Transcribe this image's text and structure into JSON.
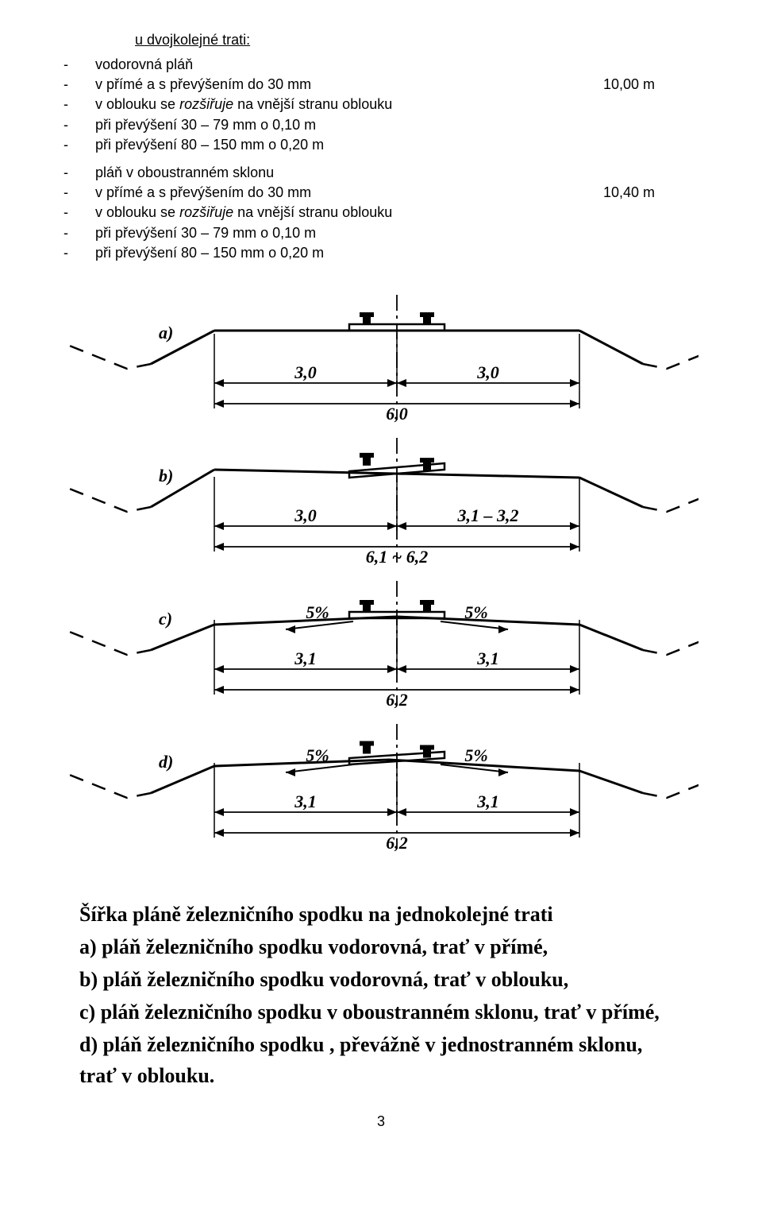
{
  "title": "u dvojkolejné trati:",
  "block1": {
    "b0": {
      "text": "vodorovná pláň",
      "right": ""
    },
    "b1": {
      "text": "v přímé a s převýšením do 30 mm",
      "right": "10,00 m"
    },
    "b2": {
      "pre": "v oblouku se ",
      "it": "rozšiřuje",
      "post": " na vnější stranu oblouku",
      "right": ""
    },
    "b3": {
      "text": "při převýšení 30 – 79 mm   o 0,10 m",
      "right": ""
    },
    "b4": {
      "text": "při převýšení 80 – 150 mm  o 0,20 m",
      "right": ""
    }
  },
  "block2": {
    "b0": {
      "text": "pláň v oboustranném sklonu",
      "right": ""
    },
    "b1": {
      "text": "v přímé a s převýšením do 30 mm",
      "right": "10,40 m"
    },
    "b2": {
      "pre": "v oblouku se ",
      "it": "rozšiřuje",
      "post": " na vnější stranu oblouku",
      "right": ""
    },
    "b3": {
      "text": "při převýšení 30 – 79 mm   o 0,10 m",
      "right": ""
    },
    "b4": {
      "text": "při převýšení 80 – 150 mm  o 0,20 m",
      "right": ""
    }
  },
  "diagrams": {
    "a": {
      "label": "a)",
      "dim_left": "3,0",
      "dim_right": "3,0",
      "dim_total": "6,0"
    },
    "b": {
      "label": "b)",
      "dim_left": "3,0",
      "dim_right": "3,1 – 3,2",
      "dim_total": "6,1 ~ 6,2"
    },
    "c": {
      "label": "c)",
      "slope_left": "5%",
      "slope_right": "5%",
      "dim_left": "3,1",
      "dim_right": "3,1",
      "dim_total": "6,2"
    },
    "d": {
      "label": "d)",
      "slope_left": "5%",
      "slope_right": "5%",
      "dim_left": "3,1",
      "dim_right": "3,1",
      "dim_total": "6,2"
    },
    "style": {
      "stroke": "#000000",
      "line_width_main": 3,
      "line_width_dash": 2.5,
      "line_width_dim": 1.8,
      "dash_pattern": "18 12",
      "font": "italic bold 22px Georgia, serif"
    }
  },
  "caption": {
    "l0": "Šířka pláně železničního spodku na jednokolejné trati",
    "l1": "a) pláň železničního spodku vodorovná, trať v přímé,",
    "l2": "b) pláň železničního spodku vodorovná, trať v oblouku,",
    "l3": "c) pláň  železničního spodku  v  oboustranném sklonu, trať v přímé,",
    "l4": "d) pláň železničního spodku , převážně  v jednostranném sklonu, trať v oblouku."
  },
  "page_number": "3"
}
